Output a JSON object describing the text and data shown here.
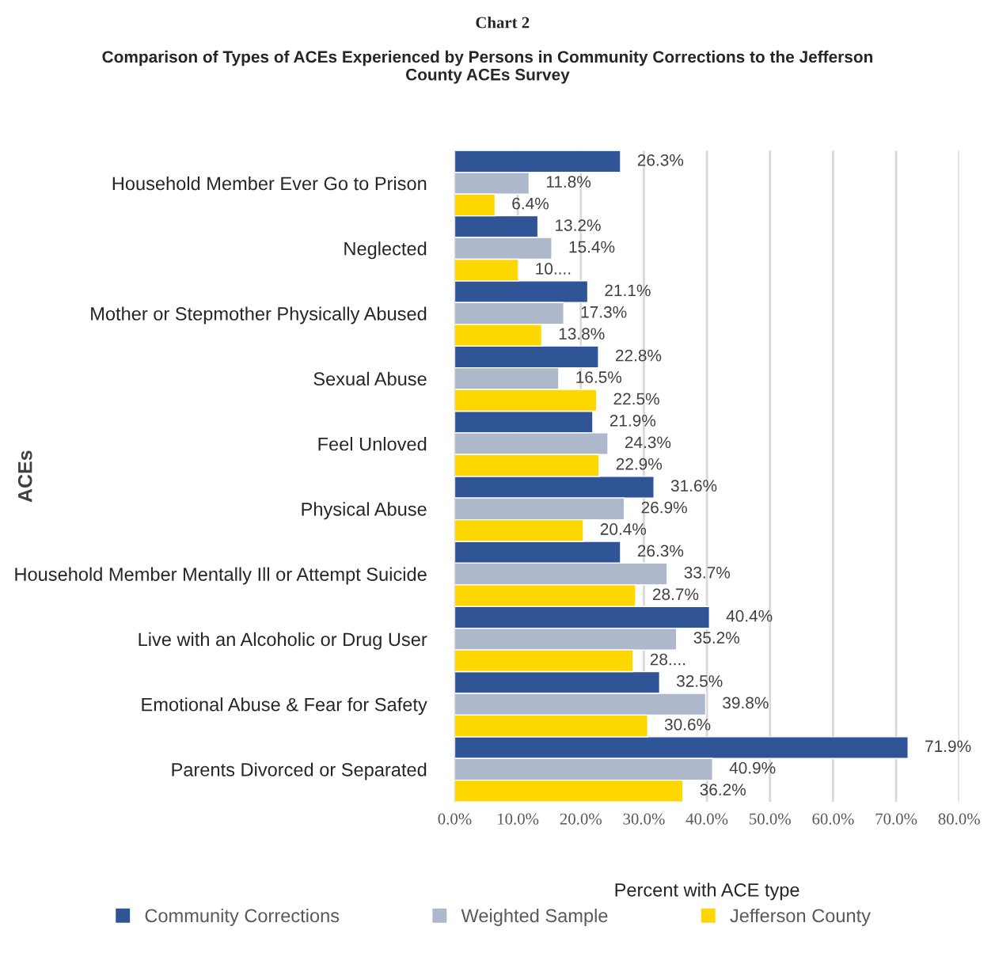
{
  "chart_data": {
    "type": "bar",
    "orientation": "horizontal",
    "title": "Chart 2",
    "subtitle": "Comparison of Types of ACEs Experienced by Persons in Community Corrections to the Jefferson County ACEs Survey",
    "xlabel": "Percent with ACE type",
    "ylabel": "ACEs",
    "categories": [
      "Household Member Ever Go to Prison",
      "Neglected",
      "Mother or Stepmother Physically Abused",
      "Sexual Abuse",
      "Feel Unloved",
      "Physical Abuse",
      "Household Member Mentally Ill or Attempt Suicide",
      "Live with an Alcoholic or Drug User",
      "Emotional Abuse & Fear for Safety",
      "Parents Divorced or Separated"
    ],
    "series": [
      {
        "name": "Community Corrections",
        "color": "#2f5597",
        "values": [
          26.3,
          13.2,
          21.1,
          22.8,
          21.9,
          31.6,
          26.3,
          40.4,
          32.5,
          71.9
        ],
        "value_labels": [
          "26.3%",
          "13.2%",
          "21.1%",
          "22.8%",
          "21.9%",
          "31.6%",
          "26.3%",
          "40.4%",
          "32.5%",
          "71.9%"
        ]
      },
      {
        "name": "Weighted Sample",
        "color": "#adb9ca",
        "values": [
          11.8,
          15.4,
          17.3,
          16.5,
          24.3,
          26.9,
          33.7,
          35.2,
          39.8,
          40.9
        ],
        "value_labels": [
          "11.8%",
          "15.4%",
          "17.3%",
          "16.5%",
          "24.3%",
          "26.9%",
          "33.7%",
          "35.2%",
          "39.8%",
          "40.9%"
        ]
      },
      {
        "name": "Jefferson County",
        "color": "#ffd700",
        "values": [
          6.4,
          10.1,
          13.8,
          22.5,
          22.9,
          20.4,
          28.7,
          28.3,
          30.6,
          36.2
        ],
        "value_labels": [
          "6.4%",
          "10....",
          "13.8%",
          "22.5%",
          "22.9%",
          "20.4%",
          "28.7%",
          "28....",
          "30.6%",
          "36.2%"
        ]
      }
    ],
    "xlim": [
      0,
      80
    ],
    "xticks": [
      {
        "value": 0,
        "label": "0.0%"
      },
      {
        "value": 10,
        "label": "10.0%"
      },
      {
        "value": 20,
        "label": "20.0%"
      },
      {
        "value": 30,
        "label": "30.0%"
      },
      {
        "value": 40,
        "label": "40.0%"
      },
      {
        "value": 50,
        "label": "50.0%"
      },
      {
        "value": 60,
        "label": "60.0%"
      },
      {
        "value": 70,
        "label": "70.0%"
      },
      {
        "value": 80,
        "label": "80.0%"
      }
    ],
    "grid": "x",
    "legend": "bottom left"
  }
}
